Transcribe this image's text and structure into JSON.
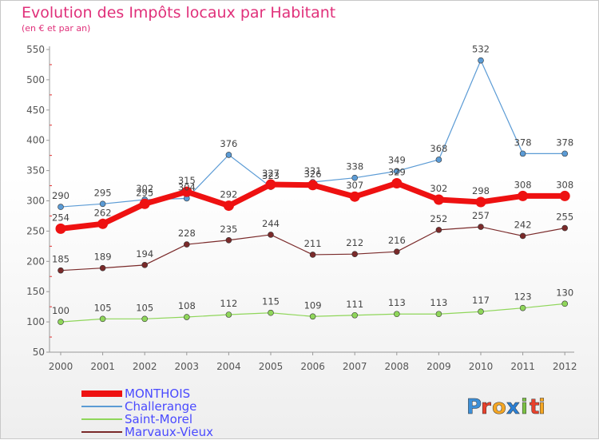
{
  "header": {
    "title": "Evolution des Impôts locaux par Habitant",
    "subtitle": "(en € et par an)"
  },
  "brand": {
    "letters": [
      "P",
      "r",
      "o",
      "x",
      "i",
      "t",
      "i"
    ],
    "colors": [
      "#3c8fd8",
      "#e8412c",
      "#f5a623",
      "#2a7fd4",
      "#7ac143",
      "#e8412c",
      "#f5a623"
    ]
  },
  "chart_data": {
    "type": "line",
    "title": "Evolution des Impôts locaux par Habitant",
    "subtitle": "(en € et par an)",
    "x": [
      "2000",
      "2001",
      "2002",
      "2003",
      "2004",
      "2005",
      "2006",
      "2007",
      "2008",
      "2009",
      "2010",
      "2011",
      "2012"
    ],
    "yticks": [
      50,
      100,
      150,
      200,
      250,
      300,
      350,
      400,
      450,
      500,
      550
    ],
    "ylim": [
      50,
      550
    ],
    "grid": false,
    "legend_position": "bottom-left",
    "series": [
      {
        "name": "Challerange",
        "color": "#5b9bd5",
        "values": [
          290,
          295,
          302,
          304,
          376,
          323,
          331,
          338,
          349,
          368,
          532,
          378,
          378
        ],
        "width": 1.2,
        "marker": 3.5
      },
      {
        "name": "Saint-Morel",
        "color": "#8fd65a",
        "values": [
          100,
          105,
          105,
          108,
          112,
          115,
          109,
          111,
          113,
          113,
          117,
          123,
          130
        ],
        "width": 1.2,
        "marker": 3.5
      },
      {
        "name": "Marvaux-Vieux",
        "color": "#7a2a2a",
        "values": [
          185,
          189,
          194,
          228,
          235,
          244,
          211,
          212,
          216,
          252,
          257,
          242,
          255
        ],
        "width": 1.2,
        "marker": 3.5
      },
      {
        "name": "MONTHOIS",
        "color": "#ee1111",
        "values": [
          254,
          262,
          295,
          315,
          292,
          327,
          326,
          307,
          329,
          302,
          298,
          308,
          308
        ],
        "width": 7,
        "marker": 6.5
      }
    ],
    "labels": {
      "Challerange": [
        "290",
        "295",
        "302",
        "304",
        "376",
        "323",
        "331",
        "338",
        "349",
        "368",
        "532",
        "378",
        "378"
      ],
      "Saint-Morel": [
        "100",
        "105",
        "105",
        "108",
        "112",
        "115",
        "109",
        "111",
        "113",
        "113",
        "117",
        "123",
        "130"
      ],
      "Marvaux-Vieux": [
        "185",
        "189",
        "194",
        "228",
        "235",
        "244",
        "211",
        "212",
        "216",
        "252",
        "257",
        "242",
        "255"
      ],
      "MONTHOIS": [
        "254",
        "262",
        "295",
        "315",
        "292",
        "327",
        "326",
        "307",
        "329",
        "302",
        "298",
        "308",
        "308"
      ]
    },
    "legend_order": [
      "MONTHOIS",
      "Challerange",
      "Saint-Morel",
      "Marvaux-Vieux"
    ]
  }
}
